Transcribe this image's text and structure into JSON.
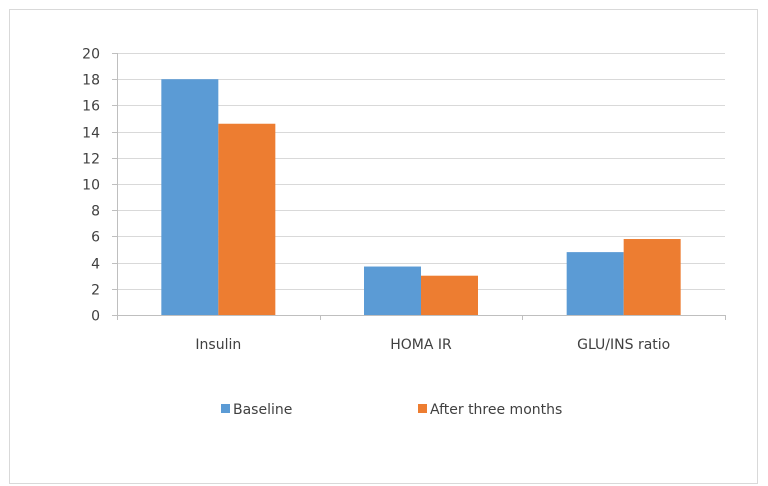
{
  "chart_data": {
    "type": "bar",
    "title": "",
    "xlabel": "",
    "ylabel": "",
    "categories": [
      "Insulin",
      "HOMA IR",
      "GLU/INS ratio"
    ],
    "series": [
      {
        "name": "Baseline",
        "color": "#5b9bd5",
        "values": [
          18.0,
          3.7,
          4.8
        ]
      },
      {
        "name": "After three months",
        "color": "#ed7d31",
        "values": [
          14.6,
          3.0,
          5.8
        ]
      }
    ],
    "ylim": [
      0,
      20
    ],
    "yticks": [
      "0",
      "2",
      "4",
      "6",
      "8",
      "10",
      "12",
      "14",
      "16",
      "18",
      "20"
    ],
    "grid": true,
    "legend_position": "bottom"
  }
}
